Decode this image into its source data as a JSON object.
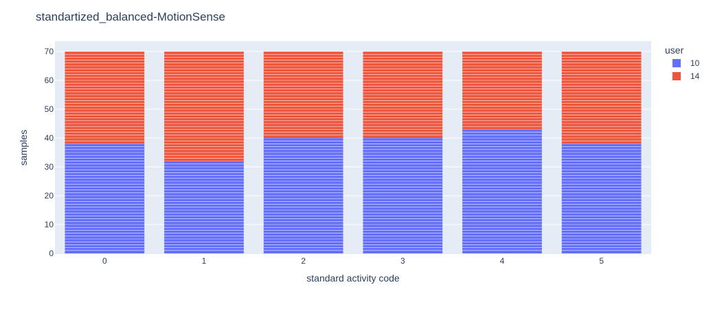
{
  "chart_data": {
    "type": "bar",
    "barmode": "stack",
    "title": "standartized_balanced-MotionSense",
    "xlabel": "standard activity code",
    "ylabel": "samples",
    "categories": [
      "0",
      "1",
      "2",
      "3",
      "4",
      "5"
    ],
    "ylim": [
      0,
      70
    ],
    "yticks": [
      0,
      10,
      20,
      30,
      40,
      50,
      60,
      70
    ],
    "legend_title": "user",
    "legend_position": "right",
    "series": [
      {
        "name": "10",
        "color": "#636efa",
        "values": [
          38,
          32,
          40,
          40,
          43,
          38
        ]
      },
      {
        "name": "14",
        "color": "#ef553b",
        "values": [
          32,
          38,
          30,
          30,
          27,
          32
        ]
      }
    ]
  }
}
